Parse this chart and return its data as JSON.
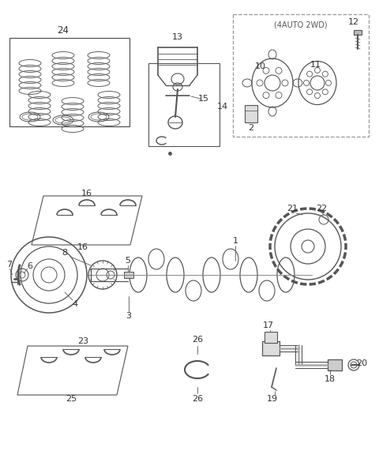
{
  "bg_color": "#ffffff",
  "lc": "#555555",
  "tc": "#333333",
  "figsize": [
    4.8,
    5.95
  ],
  "dpi": 100,
  "xlim": [
    0,
    480
  ],
  "ylim": [
    0,
    595
  ]
}
